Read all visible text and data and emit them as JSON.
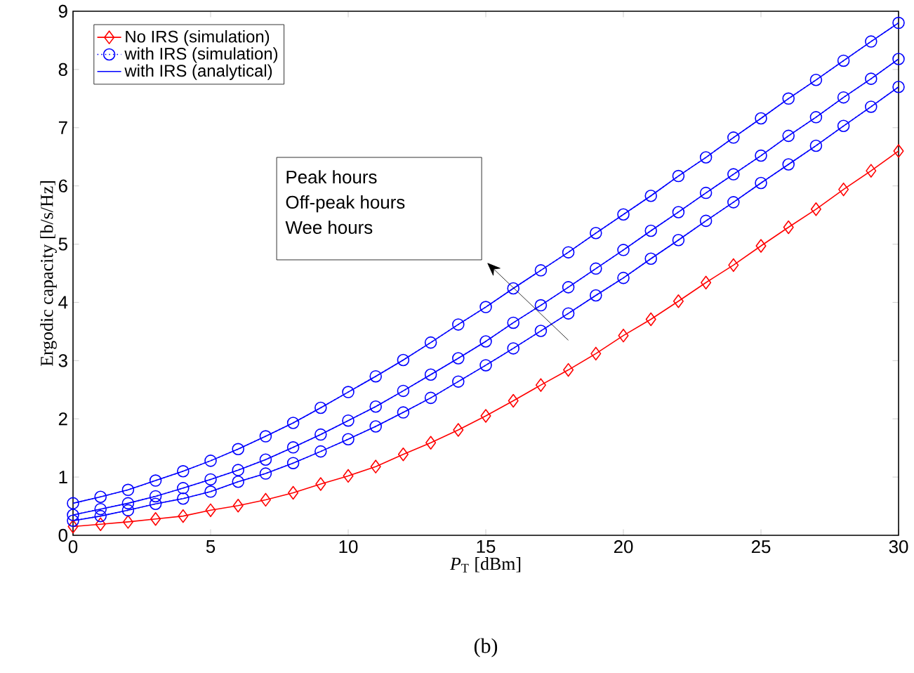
{
  "chart_data": {
    "type": "line",
    "xlabel": "*P*$_{T}$ [dBm]",
    "ylabel": "Ergodic capacity [b/s/Hz]",
    "x": [
      0,
      1,
      2,
      3,
      4,
      5,
      6,
      7,
      8,
      9,
      10,
      11,
      12,
      13,
      14,
      15,
      16,
      17,
      18,
      19,
      20,
      21,
      22,
      23,
      24,
      25,
      26,
      27,
      28,
      29,
      30
    ],
    "series": [
      {
        "name": "No IRS (simulation)",
        "color": "#ff0000",
        "marker": "diamond",
        "line_style": "solid",
        "values": [
          0.15,
          0.19,
          0.23,
          0.28,
          0.33,
          0.43,
          0.51,
          0.61,
          0.73,
          0.88,
          1.02,
          1.18,
          1.39,
          1.59,
          1.81,
          2.05,
          2.31,
          2.58,
          2.84,
          3.12,
          3.43,
          3.71,
          4.02,
          4.34,
          4.64,
          4.97,
          5.29,
          5.6,
          5.94,
          6.26,
          6.6
        ]
      },
      {
        "name": "with IRS (simulation)",
        "color": "#0000ff",
        "marker": "circle",
        "line_style": "dotted",
        "values": [
          0.55,
          0.66,
          0.78,
          0.94,
          1.1,
          1.28,
          1.48,
          1.7,
          1.93,
          2.19,
          2.46,
          2.73,
          3.01,
          3.31,
          3.62,
          3.92,
          4.24,
          4.55,
          4.86,
          5.19,
          5.51,
          5.83,
          6.17,
          6.49,
          6.83,
          7.16,
          7.5,
          7.82,
          8.15,
          8.48,
          8.8
        ]
      },
      {
        "color": "#0000ff",
        "marker": "circle",
        "line_style": "dotted",
        "values": [
          0.35,
          0.45,
          0.55,
          0.67,
          0.81,
          0.96,
          1.12,
          1.3,
          1.51,
          1.73,
          1.97,
          2.21,
          2.48,
          2.76,
          3.04,
          3.33,
          3.65,
          3.95,
          4.26,
          4.58,
          4.9,
          5.23,
          5.55,
          5.88,
          6.2,
          6.52,
          6.86,
          7.18,
          7.52,
          7.84,
          8.18
        ]
      },
      {
        "color": "#0000ff",
        "marker": "circle",
        "line_style": "dotted",
        "values": [
          0.25,
          0.33,
          0.43,
          0.54,
          0.63,
          0.75,
          0.92,
          1.06,
          1.24,
          1.44,
          1.65,
          1.87,
          2.11,
          2.36,
          2.64,
          2.92,
          3.21,
          3.51,
          3.81,
          4.12,
          4.42,
          4.75,
          5.07,
          5.4,
          5.72,
          6.05,
          6.37,
          6.69,
          7.03,
          7.36,
          7.7
        ]
      },
      {
        "name": "with IRS (analytical)",
        "color": "#0000ff",
        "marker": "none",
        "line_style": "solid",
        "values": [
          0.55,
          0.66,
          0.78,
          0.94,
          1.1,
          1.28,
          1.48,
          1.7,
          1.93,
          2.19,
          2.46,
          2.73,
          3.01,
          3.31,
          3.62,
          3.92,
          4.24,
          4.55,
          4.86,
          5.19,
          5.51,
          5.83,
          6.17,
          6.49,
          6.83,
          7.16,
          7.5,
          7.82,
          8.15,
          8.48,
          8.8
        ]
      },
      {
        "color": "#0000ff",
        "marker": "none",
        "line_style": "solid",
        "values": [
          0.35,
          0.45,
          0.55,
          0.67,
          0.81,
          0.96,
          1.12,
          1.3,
          1.51,
          1.73,
          1.97,
          2.21,
          2.48,
          2.76,
          3.04,
          3.33,
          3.65,
          3.95,
          4.26,
          4.58,
          4.9,
          5.23,
          5.55,
          5.88,
          6.2,
          6.52,
          6.86,
          7.18,
          7.52,
          7.84,
          8.18
        ]
      },
      {
        "color": "#0000ff",
        "marker": "none",
        "line_style": "solid",
        "values": [
          0.25,
          0.33,
          0.43,
          0.54,
          0.63,
          0.75,
          0.92,
          1.06,
          1.24,
          1.44,
          1.65,
          1.87,
          2.11,
          2.36,
          2.64,
          2.92,
          3.21,
          3.51,
          3.81,
          4.12,
          4.42,
          4.75,
          5.07,
          5.4,
          5.72,
          6.05,
          6.37,
          6.69,
          7.03,
          7.36,
          7.7
        ]
      }
    ],
    "xlim": [
      0,
      30
    ],
    "ylim": [
      0,
      9
    ],
    "xticks": [
      0,
      5,
      10,
      15,
      20,
      25,
      30
    ],
    "yticks": [
      0,
      1,
      2,
      3,
      4,
      5,
      6,
      7,
      8,
      9
    ],
    "grid": false,
    "legend": "top left",
    "annotations": [
      "Peak hours",
      "Off-peak hours",
      "Wee hours",
      "(b)"
    ]
  }
}
